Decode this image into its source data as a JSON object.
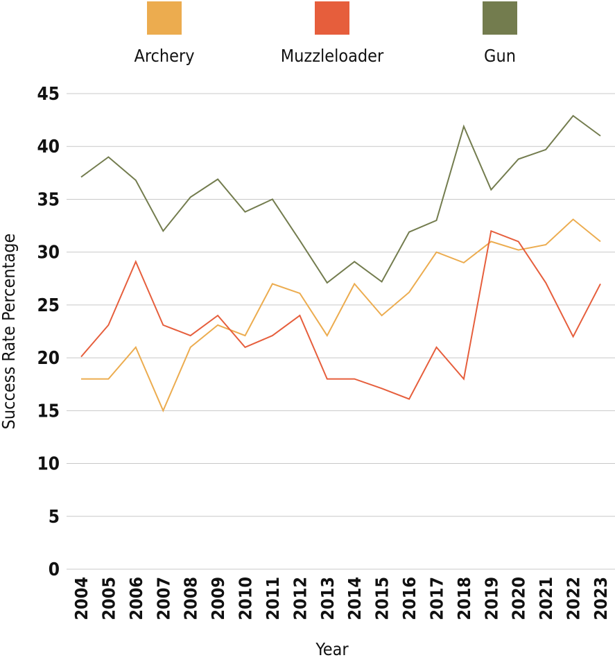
{
  "chart_data": {
    "type": "line",
    "title": "",
    "xlabel": "Year",
    "ylabel": "Success Rate Percentage",
    "ylim": [
      0,
      45
    ],
    "yticks": [
      "0",
      "5",
      "10",
      "15",
      "20",
      "25",
      "30",
      "35",
      "40",
      "45"
    ],
    "grid": true,
    "legend_position": "top",
    "categories": [
      "2004",
      "2005",
      "2006",
      "2007",
      "2008",
      "2009",
      "2010",
      "2011",
      "2012",
      "2013",
      "2014",
      "2015",
      "2016",
      "2017",
      "2018",
      "2019",
      "2020",
      "2021",
      "2022",
      "2023"
    ],
    "series": [
      {
        "name": "Archery",
        "color": "#ECAC4F",
        "values": [
          18,
          18,
          21,
          15,
          21,
          23.1,
          22.1,
          27,
          26.1,
          22.1,
          27,
          24,
          26.2,
          30,
          29,
          31,
          30.2,
          30.7,
          33.1,
          31
        ]
      },
      {
        "name": "Muzzleloader",
        "color": "#E65E3C",
        "values": [
          20.1,
          23.1,
          29.1,
          23.1,
          22.1,
          24,
          21,
          22.1,
          24,
          18,
          18,
          17.1,
          16.1,
          21,
          18,
          32,
          31,
          27.1,
          22,
          27
        ]
      },
      {
        "name": "Gun",
        "color": "#737C4E",
        "values": [
          37.1,
          39,
          36.8,
          32,
          35.2,
          36.9,
          33.8,
          35,
          31.1,
          27.1,
          29.1,
          27.2,
          31.9,
          33,
          41.9,
          35.9,
          38.8,
          39.7,
          42.9,
          41
        ]
      }
    ]
  }
}
